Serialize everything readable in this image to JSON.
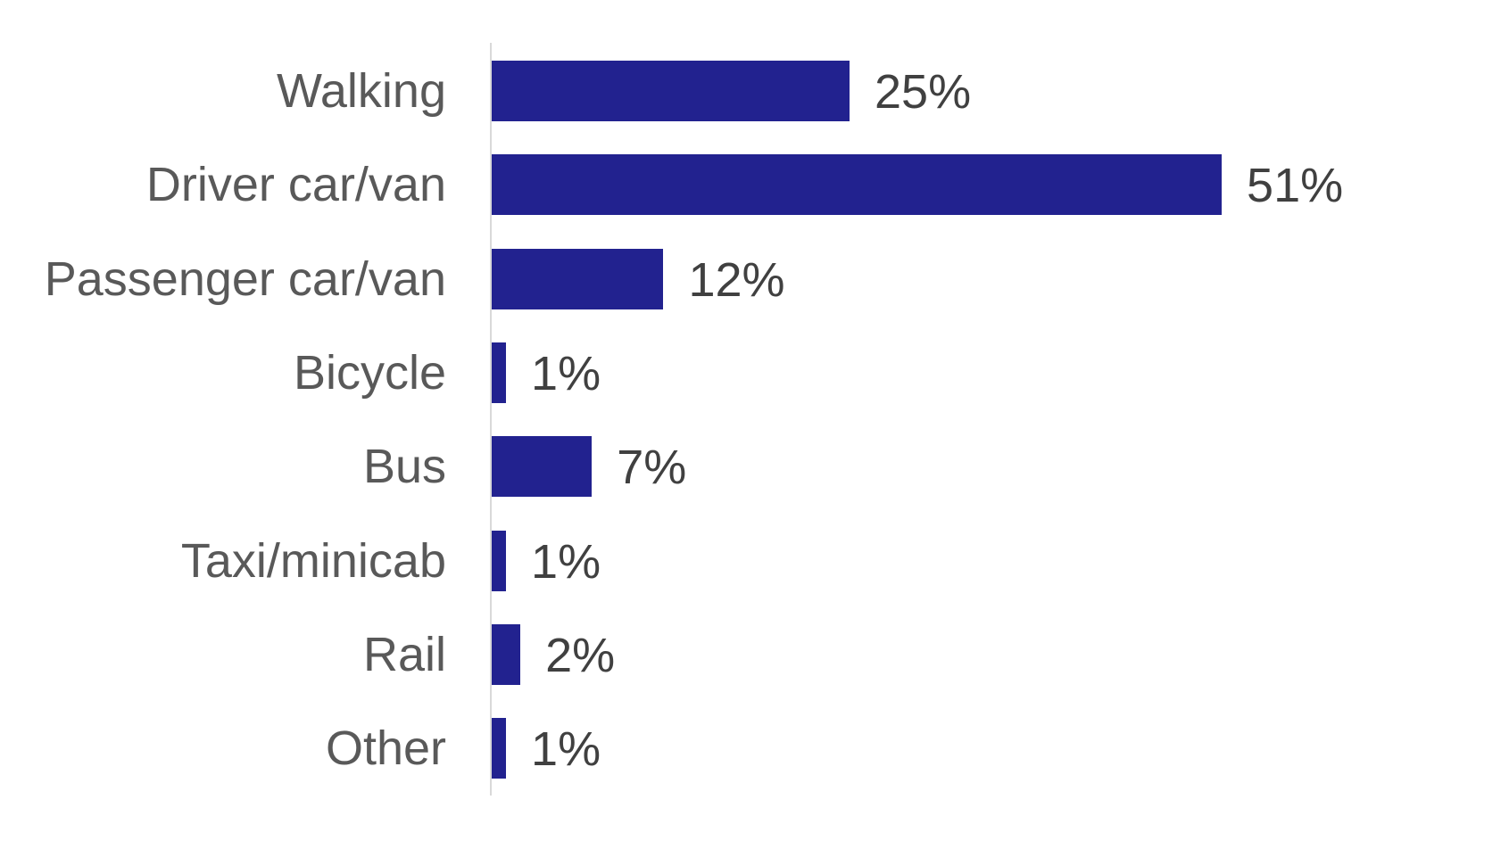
{
  "chart_data": {
    "type": "bar",
    "orientation": "horizontal",
    "title": "",
    "xlabel": "",
    "ylabel": "",
    "categories": [
      "Walking",
      "Driver car/van",
      "Passenger car/van",
      "Bicycle",
      "Bus",
      "Taxi/minicab",
      "Rail",
      "Other"
    ],
    "values": [
      25,
      51,
      12,
      1,
      7,
      1,
      2,
      1
    ],
    "value_labels": [
      "25%",
      "51%",
      "12%",
      "1%",
      "7%",
      "1%",
      "2%",
      "1%"
    ],
    "unit": "%",
    "grid": false,
    "legend": null,
    "bar_color": "#22228f"
  },
  "labels": {
    "rows": [
      {
        "category": "Walking",
        "value": "25%"
      },
      {
        "category": "Driver car/van",
        "value": "51%"
      },
      {
        "category": "Passenger car/van",
        "value": "12%"
      },
      {
        "category": "Bicycle",
        "value": "1%"
      },
      {
        "category": "Bus",
        "value": "7%"
      },
      {
        "category": "Taxi/minicab",
        "value": "1%"
      },
      {
        "category": "Rail",
        "value": "2%"
      },
      {
        "category": "Other",
        "value": "1%"
      }
    ]
  }
}
